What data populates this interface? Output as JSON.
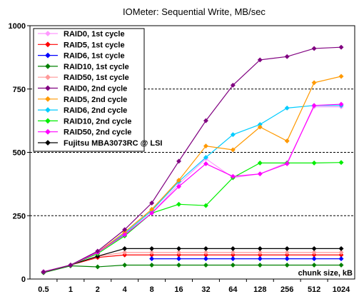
{
  "chart_data": {
    "type": "line",
    "title": "IOMeter: Sequential  Write, MB/sec",
    "xlabel": "chunk size, kB",
    "ylabel": "",
    "categories": [
      "0.5",
      "1",
      "2",
      "4",
      "8",
      "16",
      "32",
      "64",
      "128",
      "256",
      "512",
      "1024"
    ],
    "ylim": [
      0,
      1000
    ],
    "yticks": [
      "0",
      "250",
      "500",
      "750",
      "1000"
    ],
    "grid": "horizontal dashed at 250, 500, 750",
    "legend_position": "top-left",
    "series": [
      {
        "name": "RAID0, 1st cycle",
        "color": "#ff99ff",
        "values": [
          30,
          55,
          105,
          175,
          260,
          375,
          475,
          400,
          415,
          460,
          680,
          680
        ]
      },
      {
        "name": "RAID5, 1st cycle",
        "color": "#ff0000",
        "values": [
          28,
          55,
          85,
          95,
          95,
          95,
          95,
          95,
          95,
          95,
          95,
          95
        ]
      },
      {
        "name": "RAID6, 1st cycle",
        "color": "#0000ff",
        "values": [
          null,
          null,
          null,
          null,
          80,
          80,
          80,
          80,
          80,
          80,
          80,
          80
        ]
      },
      {
        "name": "RAID10, 1st cycle",
        "color": "#008000",
        "values": [
          25,
          52,
          48,
          55,
          55,
          55,
          55,
          55,
          55,
          55,
          55,
          55
        ]
      },
      {
        "name": "RAID50, 1st cycle",
        "color": "#ff9999",
        "values": [
          28,
          55,
          90,
          105,
          105,
          105,
          105,
          105,
          105,
          105,
          105,
          105
        ]
      },
      {
        "name": "RAID0, 2nd cycle",
        "color": "#800080",
        "values": [
          28,
          55,
          110,
          195,
          300,
          465,
          625,
          765,
          865,
          878,
          910,
          915
        ]
      },
      {
        "name": "RAID5, 2nd cycle",
        "color": "#ff9900",
        "values": [
          28,
          55,
          105,
          185,
          275,
          390,
          525,
          510,
          600,
          545,
          775,
          800
        ]
      },
      {
        "name": "RAID6, 2nd cycle",
        "color": "#00ccff",
        "values": [
          28,
          55,
          105,
          180,
          270,
          385,
          480,
          570,
          610,
          675,
          685,
          685
        ]
      },
      {
        "name": "RAID10, 2nd cycle",
        "color": "#00ee00",
        "values": [
          28,
          55,
          100,
          170,
          260,
          295,
          290,
          400,
          458,
          458,
          458,
          460
        ]
      },
      {
        "name": "RAID50, 2nd cycle",
        "color": "#ff00ff",
        "values": [
          28,
          55,
          105,
          175,
          260,
          365,
          455,
          405,
          415,
          455,
          685,
          690
        ]
      },
      {
        "name": "Fujitsu MBA3073RC @ LSI",
        "color": "#000000",
        "values": [
          28,
          55,
          90,
          120,
          120,
          120,
          120,
          120,
          120,
          120,
          120,
          120
        ]
      }
    ]
  }
}
